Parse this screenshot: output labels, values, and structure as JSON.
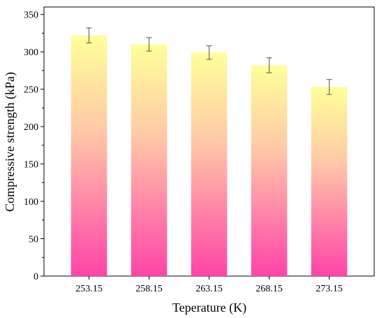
{
  "chart_data": {
    "type": "bar",
    "xlabel": "Teperature (K)",
    "ylabel": "Compressive strength (kPa)",
    "categories": [
      "253.15",
      "258.15",
      "263.15",
      "268.15",
      "273.15"
    ],
    "values": [
      322,
      310,
      299,
      282,
      253
    ],
    "errors": [
      10,
      9,
      9,
      10,
      10
    ],
    "ylim": [
      0,
      360
    ],
    "yticks": [
      0,
      50,
      100,
      150,
      200,
      250,
      300,
      350
    ],
    "grid": false,
    "bar_gradient": {
      "top": "#ffff99",
      "middle": "#ffc8a8",
      "bottom": "#ff44a8"
    },
    "error_bar_color": "#555555"
  }
}
